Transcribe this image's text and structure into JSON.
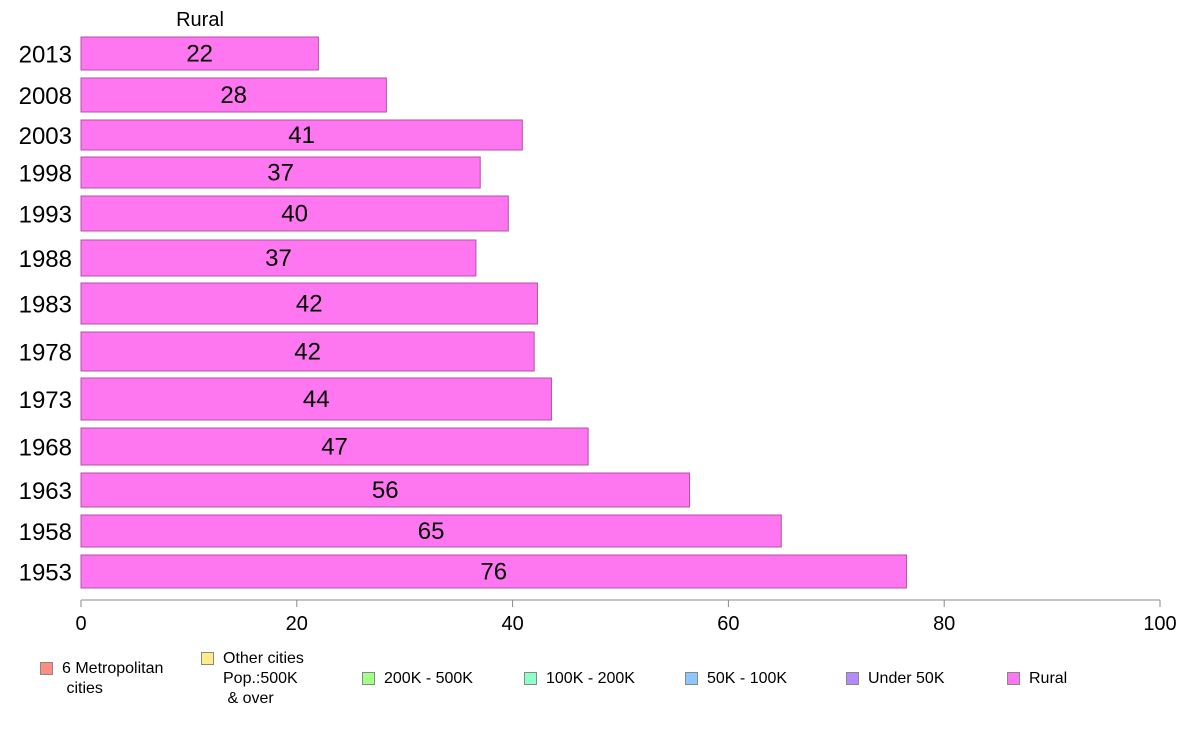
{
  "chart_data": {
    "type": "bar",
    "orientation": "horizontal",
    "title": "Rural",
    "categories": [
      "2013",
      "2008",
      "2003",
      "1998",
      "1993",
      "1988",
      "1983",
      "1978",
      "1973",
      "1968",
      "1963",
      "1958",
      "1953"
    ],
    "series": [
      {
        "name": "Rural",
        "color": "#ff77f0",
        "values": [
          22,
          28.3,
          40.9,
          37,
          39.6,
          36.6,
          42.3,
          42,
          43.6,
          47,
          56.4,
          64.9,
          76.5
        ],
        "labels": [
          "22",
          "28",
          "41",
          "37",
          "40",
          "37",
          "42",
          "42",
          "44",
          "47",
          "56",
          "65",
          "76"
        ]
      }
    ],
    "xlim": [
      0,
      100
    ],
    "xticks": [
      "0",
      "20",
      "40",
      "60",
      "80",
      "100"
    ],
    "grid": false,
    "legend_position": "bottom"
  },
  "legend": [
    {
      "label": "6 Metropolitan\n cities",
      "color": "#ff8c85"
    },
    {
      "label": "Other cities\nPop.:500K\n & over",
      "color": "#ffeb8a"
    },
    {
      "label": "200K - 500K",
      "color": "#a3ff87"
    },
    {
      "label": "100K - 200K",
      "color": "#8effc8"
    },
    {
      "label": "50K - 100K",
      "color": "#8cc8ff"
    },
    {
      "label": "Under 50K",
      "color": "#b28cff"
    },
    {
      "label": "Rural",
      "color": "#ff77f0"
    }
  ]
}
